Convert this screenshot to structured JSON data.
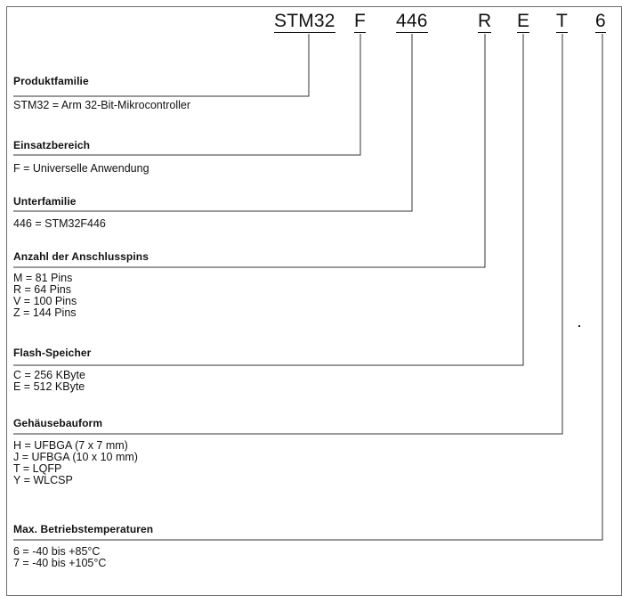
{
  "code": [
    "STM32",
    "F",
    "446",
    "R",
    "E",
    "T",
    "6"
  ],
  "sections": [
    {
      "heading": "Produktfamilie",
      "items": [
        "STM32 = Arm 32-Bit-Mikrocontroller"
      ]
    },
    {
      "heading": "Einsatzbereich",
      "items": [
        "F = Universelle Anwendung"
      ]
    },
    {
      "heading": "Unterfamilie",
      "items": [
        "446 = STM32F446"
      ]
    },
    {
      "heading": "Anzahl der Anschlusspins",
      "items": [
        "M  = 81 Pins",
        "R  = 64 Pins",
        "V  = 100 Pins",
        "Z  = 144 Pins"
      ]
    },
    {
      "heading": "Flash-Speicher",
      "items": [
        "C  = 256 KByte",
        "E  = 512 KByte"
      ]
    },
    {
      "heading": "Gehäusebauform",
      "items": [
        "H  = UFBGA (7 x 7 mm)",
        "J  = UFBGA (10 x 10 mm)",
        "T  = LQFP",
        "Y  = WLCSP"
      ]
    },
    {
      "heading": "Max. Betriebstemperaturen",
      "items": [
        "6  = -40 bis +85°C",
        "7  = -40 bis +105°C"
      ]
    }
  ]
}
